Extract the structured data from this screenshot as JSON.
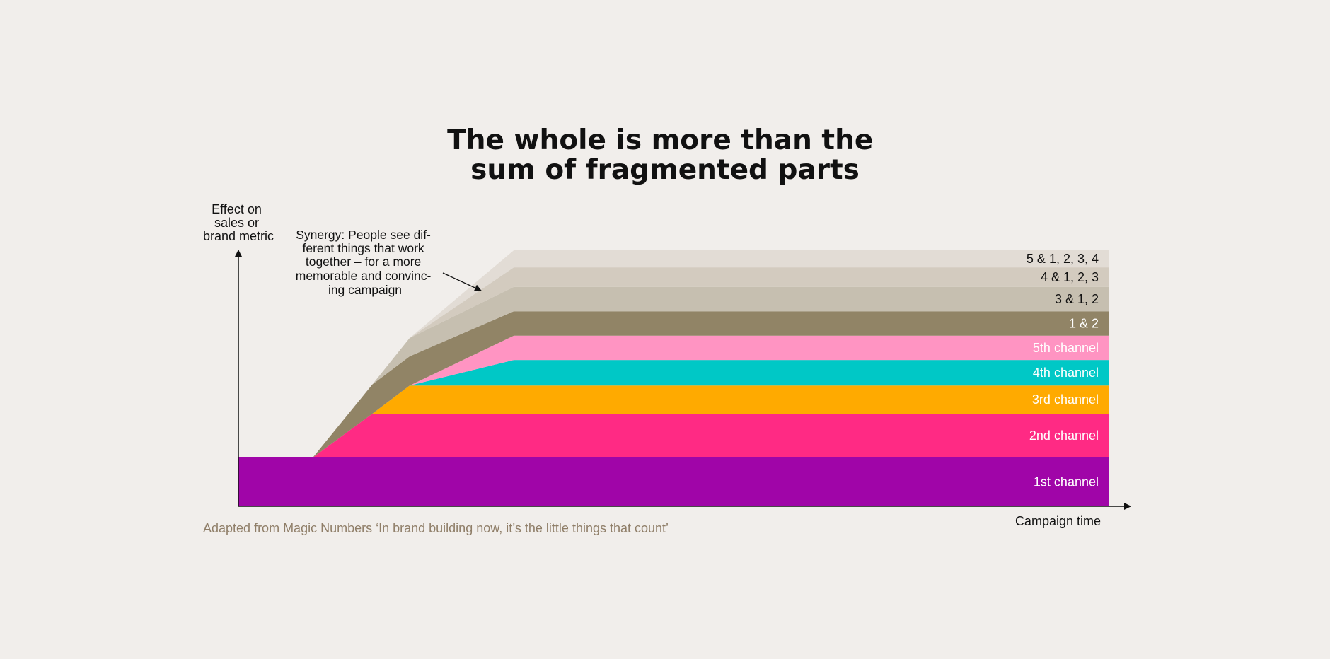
{
  "chart_data": {
    "type": "area",
    "title": [
      "The whole is more than the",
      "sum of fragmented parts"
    ],
    "ylabel": [
      "Effect on",
      "sales or",
      "brand metric"
    ],
    "xlabel": "Campaign time",
    "annotation": [
      "Synergy: People see dif-",
      "ferent things that work",
      "together – for a more",
      "memorable and convinc-",
      "ing campaign"
    ],
    "source": "Adapted from Magic Numbers ‘In brand building now, it’s the little things that count’",
    "grid": false,
    "legend": "inline-right",
    "x": [
      0,
      1,
      1.8,
      2.3,
      3.7,
      11.7
    ],
    "ylim": [
      0,
      10.5
    ],
    "series": [
      {
        "name": "1st channel",
        "color": "#a005a8",
        "label_color": "#ffffff",
        "values": [
          2.0,
          2.0,
          2.0,
          2.0,
          2.0,
          2.0
        ]
      },
      {
        "name": "2nd channel",
        "color": "#ff2a84",
        "label_color": "#ffffff",
        "values": [
          0.0,
          0.0,
          1.8,
          1.8,
          1.8,
          1.8
        ]
      },
      {
        "name": "3rd channel",
        "color": "#ffaa00",
        "label_color": "#ffffff",
        "values": [
          0.0,
          0.0,
          0.0,
          1.15,
          1.15,
          1.15
        ]
      },
      {
        "name": "4th channel",
        "color": "#00c8c6",
        "label_color": "#ffffff",
        "values": [
          0.0,
          0.0,
          0.0,
          0.0,
          1.05,
          1.05
        ]
      },
      {
        "name": "5th channel",
        "color": "#ff94c2",
        "label_color": "#ffffff",
        "values": [
          0.0,
          0.0,
          0.0,
          0.0,
          1.0,
          1.0
        ]
      },
      {
        "name": "1 & 2",
        "color": "#918466",
        "label_color": "#ffffff",
        "values": [
          0.0,
          0.0,
          1.2,
          1.2,
          1.0,
          1.0
        ]
      },
      {
        "name": "3 & 1, 2",
        "color": "#c6bfb0",
        "label_color": "#111111",
        "values": [
          0.0,
          0.0,
          0.0,
          0.75,
          1.0,
          1.0
        ]
      },
      {
        "name": "4 & 1, 2, 3",
        "color": "#d3cbbf",
        "label_color": "#111111",
        "values": [
          0.0,
          0.0,
          0.0,
          0.0,
          0.8,
          0.8
        ]
      },
      {
        "name": "5 & 1, 2, 3, 4",
        "color": "#e2dcd5",
        "label_color": "#111111",
        "values": [
          0.0,
          0.0,
          0.0,
          0.0,
          0.7,
          0.7
        ]
      }
    ]
  }
}
